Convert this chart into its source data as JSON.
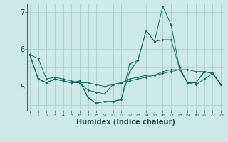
{
  "xlabel": "Humidex (Indice chaleur)",
  "background_color": "#cce8e8",
  "grid_color": "#aacfcf",
  "line_color": "#1a6b6b",
  "x_values": [
    0,
    1,
    2,
    3,
    4,
    5,
    6,
    7,
    8,
    9,
    10,
    11,
    12,
    13,
    14,
    15,
    16,
    17,
    18,
    19,
    20,
    21,
    22,
    23
  ],
  "series": [
    [
      5.85,
      5.75,
      5.2,
      5.25,
      5.2,
      5.15,
      5.1,
      5.1,
      5.05,
      5.0,
      5.05,
      5.1,
      5.15,
      5.2,
      5.25,
      5.3,
      5.35,
      5.4,
      5.45,
      5.45,
      5.4,
      5.4,
      5.35,
      5.05
    ],
    [
      5.85,
      5.2,
      5.1,
      5.2,
      5.15,
      5.1,
      5.1,
      4.9,
      4.85,
      4.8,
      5.05,
      5.1,
      5.2,
      5.25,
      5.3,
      5.3,
      5.4,
      5.45,
      5.45,
      5.1,
      5.05,
      5.2,
      5.35,
      5.05
    ],
    [
      5.85,
      5.2,
      5.1,
      5.2,
      5.15,
      5.1,
      5.15,
      4.7,
      4.55,
      4.6,
      4.6,
      4.65,
      5.4,
      5.7,
      6.5,
      6.2,
      6.25,
      6.25,
      5.5,
      5.1,
      5.1,
      5.4,
      5.35,
      5.05
    ],
    [
      5.85,
      5.2,
      5.1,
      5.2,
      5.15,
      5.1,
      5.15,
      4.7,
      4.55,
      4.6,
      4.6,
      4.65,
      5.6,
      5.7,
      6.5,
      6.2,
      7.15,
      6.65,
      5.5,
      5.1,
      5.1,
      5.4,
      5.35,
      5.05
    ]
  ],
  "ylim": [
    4.35,
    7.2
  ],
  "yticks": [
    5,
    6,
    7
  ],
  "xlim": [
    -0.3,
    23.3
  ],
  "figsize": [
    3.2,
    2.0
  ],
  "dpi": 100
}
